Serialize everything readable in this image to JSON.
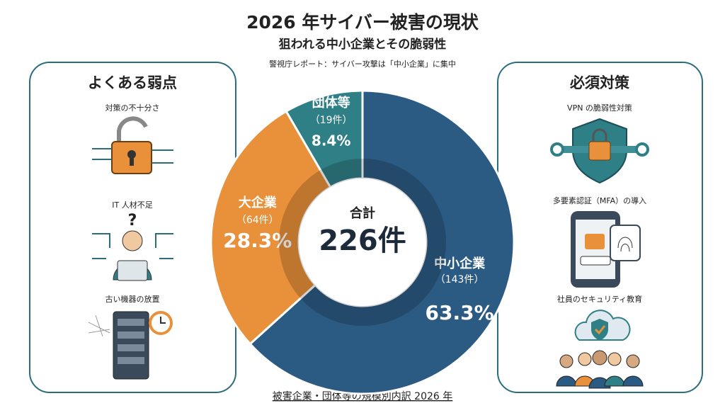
{
  "chart_data": {
    "type": "donut",
    "title": "2026 年サイバー被害の現状",
    "subtitle": "狙われる中小企業とその脆弱性",
    "note": "警視庁レポート：サイバー攻撃は「中小企業」に集中",
    "caption": "被害企業・団体等の規模別内訳 2026 年",
    "center_title": "合計",
    "center_value": "226件",
    "categories": [
      "中小企業",
      "大企業",
      "団体等"
    ],
    "count_labels": [
      "（143件）",
      "（64件）",
      "（19件）"
    ],
    "values": [
      63.3,
      28.3,
      8.4
    ],
    "value_labels": [
      "63.3%",
      "28.3%",
      "8.4%"
    ],
    "colors": [
      "#2b5a83",
      "#e8913a",
      "#2f7f87"
    ]
  },
  "left_panel": {
    "title": "よくある弱点",
    "items": [
      "対策の不十分さ",
      "IT 人材不足",
      "古い機器の放置"
    ]
  },
  "right_panel": {
    "title": "必須対策",
    "items": [
      "VPN の脆弱性対策",
      "多要素認証（MFA）の導入",
      "社員のセキュリティ教育"
    ]
  }
}
